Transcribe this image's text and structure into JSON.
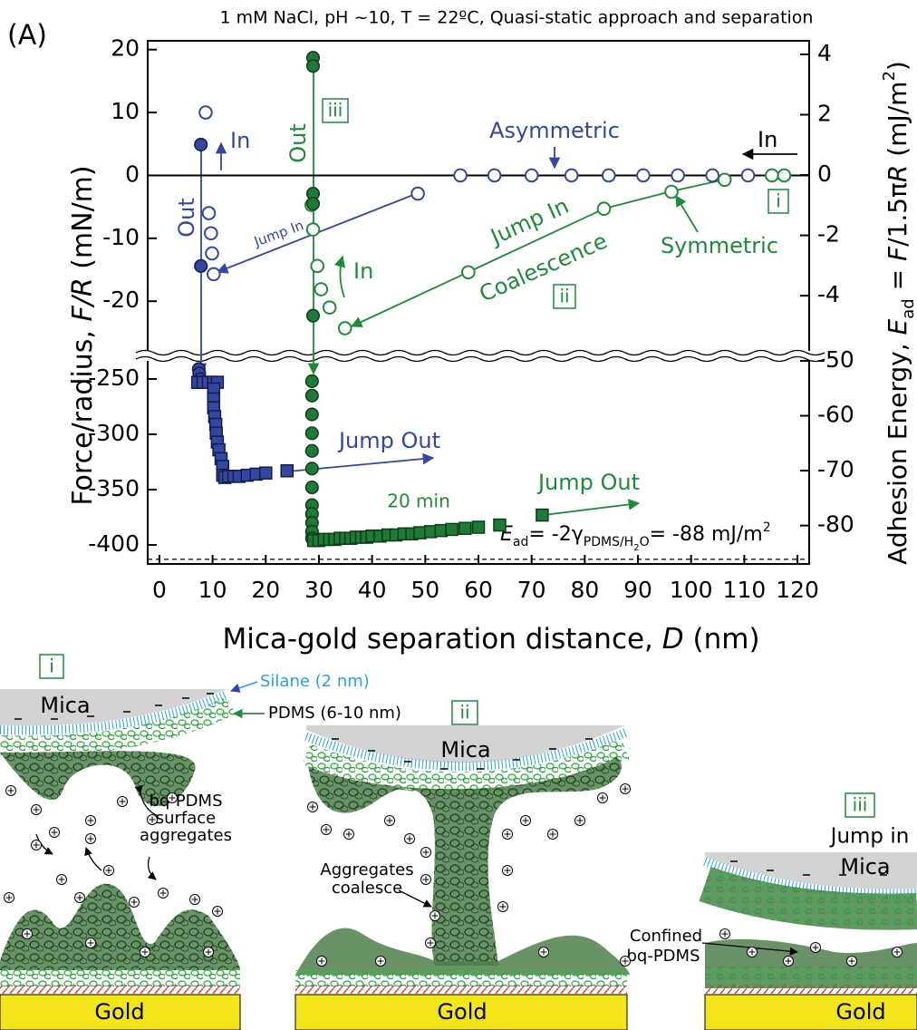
{
  "panel_label": "(A)",
  "chart_data": [
    {
      "type": "scatter",
      "title": "1 mM NaCl, pH ~10, T = 22ºC, Quasi-static approach and separation",
      "ylabel": [
        "Force/radius, ",
        "F/R",
        " (mN/m)"
      ],
      "y2label": [
        "Adhesion Energy, ",
        "E",
        "ad",
        " = ",
        "F",
        "/1.5π",
        "R",
        " (mJ/m",
        "2",
        ")"
      ],
      "xlim": [
        -2.2,
        122.2
      ],
      "ylim": [
        -27.9,
        21.4
      ],
      "yticks": [
        20,
        10,
        0,
        -10,
        -20
      ],
      "y2lim": [
        -5.83,
        4.45
      ],
      "y2ticks": [
        4,
        2,
        0,
        -2,
        -4
      ],
      "zero_line": true,
      "series": [
        {
          "color": "#3447a0",
          "edgecolor": "#3447a0",
          "marker": "circle",
          "fill": "open",
          "x": [
            8.7,
            9.3,
            9.7,
            9.9,
            10.2,
            48.6,
            56.6,
            63,
            70,
            77.5,
            84.5,
            91,
            97.5,
            104,
            110.7
          ],
          "values": [
            10,
            -6,
            -9.2,
            -12.4,
            -15.7,
            -2.9,
            0,
            0,
            0,
            0,
            0,
            0,
            0,
            0,
            0
          ]
        },
        {
          "color": "#3447a0",
          "edgecolor": "#141c4a",
          "marker": "circle",
          "fill": "filled",
          "x": [
            7.8,
            7.8
          ],
          "values": [
            4.9,
            -14.4
          ]
        },
        {
          "color": "#1e8a3a",
          "edgecolor": "#1e8a3a",
          "marker": "circle",
          "fill": "open",
          "x": [
            28.6,
            28.9,
            29.7,
            30.4,
            32,
            34.9,
            58.1,
            83.6,
            96.3,
            106.3,
            115.2,
            117.5
          ],
          "values": [
            -4.7,
            -8.6,
            -14.4,
            -18.1,
            -21,
            -24.3,
            -15.4,
            -5.3,
            -2.6,
            -0.7,
            0,
            0
          ]
        },
        {
          "color": "#1e7a36",
          "edgecolor": "#0b3d18",
          "marker": "circle",
          "fill": "filled",
          "x": [
            28.9,
            28.9,
            28.9,
            28.9,
            28.9
          ],
          "values": [
            18.7,
            17.4,
            -2.9,
            -4.5,
            -22.3
          ]
        }
      ],
      "annotations": [
        {
          "text": "Out",
          "color": "#3447a0"
        },
        {
          "text": "In",
          "color": "#3447a0"
        },
        {
          "text": "Jump In",
          "color": "#3447a0"
        },
        {
          "text": "Asymmetric",
          "color": "#3447a0"
        },
        {
          "text": "In",
          "color": "#000000"
        },
        {
          "text": "Out",
          "color": "#1e8a3a"
        },
        {
          "text": "iii",
          "color": "#1e8a3a"
        },
        {
          "text": "In",
          "color": "#1e8a3a"
        },
        {
          "text": "Jump In",
          "color": "#1e8a3a"
        },
        {
          "text": "Coalescence",
          "color": "#1e8a3a"
        },
        {
          "text": "ii",
          "color": "#1e8a3a"
        },
        {
          "text": "Symmetric",
          "color": "#1e8a3a"
        },
        {
          "text": "i",
          "color": "#1e8a3a"
        }
      ]
    },
    {
      "type": "scatter",
      "xlabel": [
        "Mica-gold separation distance, ",
        "D",
        " (nm)"
      ],
      "xlim": [
        -2.2,
        122.2
      ],
      "xticks": [
        0,
        10,
        20,
        30,
        40,
        50,
        60,
        70,
        80,
        90,
        100,
        110,
        120
      ],
      "ylim": [
        -417.2,
        -233.6
      ],
      "yticks": [
        -250,
        -300,
        -350,
        -400
      ],
      "y2lim": [
        -87,
        -50
      ],
      "y2ticks": [
        -50,
        -60,
        -70,
        -80
      ],
      "reference_line": -413,
      "series": [
        {
          "color": "#3447a0",
          "edgecolor": "#141c4a",
          "marker": "circle",
          "fill": "filled",
          "x": [
            7.4,
            7.5,
            7.7
          ],
          "values": [
            -241,
            -245,
            -250
          ]
        },
        {
          "color": "#3447a0",
          "edgecolor": "#141c4a",
          "marker": "square",
          "fill": "filled",
          "x": [
            7.2,
            8.2,
            9.2,
            10.2,
            10.9,
            10.2,
            10.2,
            10.2,
            10.4,
            10.6,
            10.7,
            10.9,
            11.2,
            11.6,
            11.9,
            11.9,
            12.3,
            13.0,
            14.0,
            15.0,
            16.5,
            18.2,
            20,
            24
          ],
          "values": [
            -253,
            -253,
            -253,
            -253,
            -253,
            -259,
            -268,
            -276,
            -284,
            -291,
            -299,
            -307,
            -314,
            -322,
            -329,
            -337,
            -339,
            -338,
            -338,
            -338,
            -337,
            -336,
            -335,
            -333
          ]
        },
        {
          "color": "#1e7a36",
          "edgecolor": "#0b3d18",
          "marker": "circle",
          "fill": "filled",
          "x": [
            28.7,
            28.7,
            28.7,
            28.7,
            28.7,
            28.7,
            28.7,
            28.7,
            28.7,
            28.7,
            28.7,
            28.7
          ],
          "values": [
            -252,
            -265,
            -282,
            -299,
            -315,
            -331,
            -348,
            -364,
            -372,
            -380,
            -388,
            -394
          ]
        },
        {
          "color": "#1e7a36",
          "edgecolor": "#0b3d18",
          "marker": "square",
          "fill": "filled",
          "x": [
            29,
            30,
            31,
            32,
            33,
            34,
            35,
            36,
            37,
            38,
            39,
            40,
            41.5,
            43,
            44.5,
            46,
            47.5,
            49,
            51,
            53,
            55,
            57.5,
            60,
            64,
            72
          ],
          "values": [
            -396,
            -396,
            -395,
            -395,
            -395,
            -394,
            -394,
            -394,
            -393,
            -393,
            -393,
            -392,
            -392,
            -391,
            -391,
            -390,
            -390,
            -389,
            -388,
            -387,
            -386,
            -385,
            -384,
            -382,
            -373
          ]
        }
      ],
      "annotations": [
        {
          "text": "Jump Out",
          "color": "#3447a0"
        },
        {
          "text": "Jump Out",
          "color": "#1e8a3a"
        },
        {
          "text": "20 min",
          "color": "#1e8a3a"
        }
      ],
      "formula": [
        "E",
        "ad",
        "= -2γ",
        "PDMS/H",
        "2",
        "O",
        "= -88 mJ/m",
        "2"
      ]
    }
  ],
  "diagrams": [
    {
      "label": "i",
      "mica": "Mica",
      "gold": "Gold",
      "notes": [
        "Silane (2 nm)",
        "PDMS (6-10 nm)",
        "bq-PDMS",
        "surface",
        "aggregates"
      ]
    },
    {
      "label": "ii",
      "mica": "Mica",
      "gold": "Gold",
      "notes": [
        "Aggregates",
        "coalesce"
      ]
    },
    {
      "label": "iii",
      "mica": "Mica",
      "gold": "Gold",
      "notes": [
        "Jump in",
        "Confined",
        "bq-PDMS"
      ]
    }
  ]
}
